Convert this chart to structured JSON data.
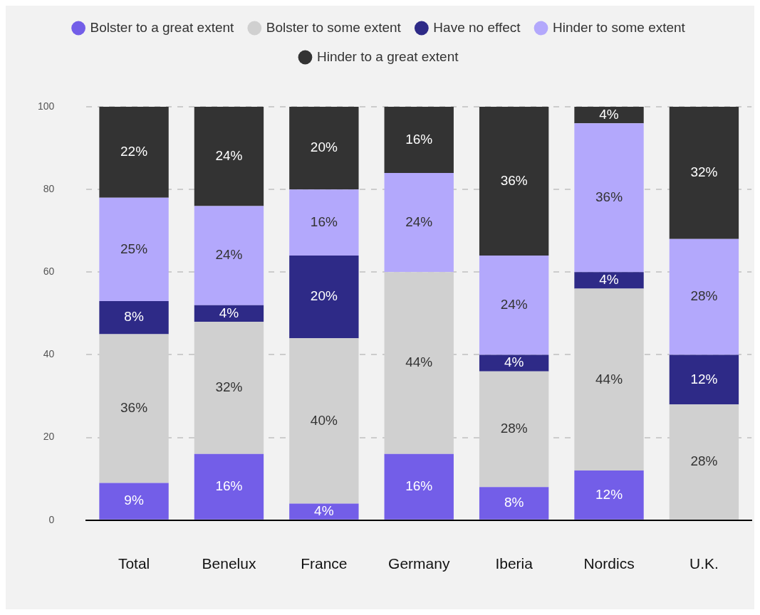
{
  "chart_data": {
    "type": "bar",
    "stacked": true,
    "categories": [
      "Total",
      "Benelux",
      "France",
      "Germany",
      "Iberia",
      "Nordics",
      "U.K."
    ],
    "series": [
      {
        "name": "Bolster to a great extent",
        "color": "#735ee8",
        "values": [
          9,
          16,
          4,
          16,
          8,
          12,
          0
        ],
        "value_labels": [
          "9%",
          "16%",
          "4%",
          "16%",
          "8%",
          "12%",
          null
        ]
      },
      {
        "name": "Bolster to some extent",
        "color": "#d0d0d0",
        "values": [
          36,
          32,
          40,
          44,
          28,
          44,
          28
        ],
        "value_labels": [
          "36%",
          "32%",
          "40%",
          "44%",
          "28%",
          "44%",
          "28%"
        ]
      },
      {
        "name": "Have no effect",
        "color": "#2e2a87",
        "values": [
          8,
          4,
          20,
          0,
          4,
          4,
          12
        ],
        "value_labels": [
          "8%",
          "4%",
          "20%",
          null,
          "4%",
          "4%",
          "12%"
        ]
      },
      {
        "name": "Hinder to some extent",
        "color": "#b3a8fc",
        "values": [
          25,
          24,
          16,
          24,
          24,
          36,
          28
        ],
        "value_labels": [
          "25%",
          "24%",
          "16%",
          "24%",
          "24%",
          "36%",
          "28%"
        ]
      },
      {
        "name": "Hinder to a great extent",
        "color": "#333333",
        "values": [
          22,
          24,
          20,
          16,
          36,
          4,
          32
        ],
        "value_labels": [
          "22%",
          "24%",
          "20%",
          "16%",
          "36%",
          "4%",
          "32%"
        ]
      }
    ],
    "ylim": [
      0,
      100
    ],
    "yticks": [
      0,
      20,
      40,
      60,
      80,
      100
    ],
    "grid": "y",
    "legend": "top"
  }
}
